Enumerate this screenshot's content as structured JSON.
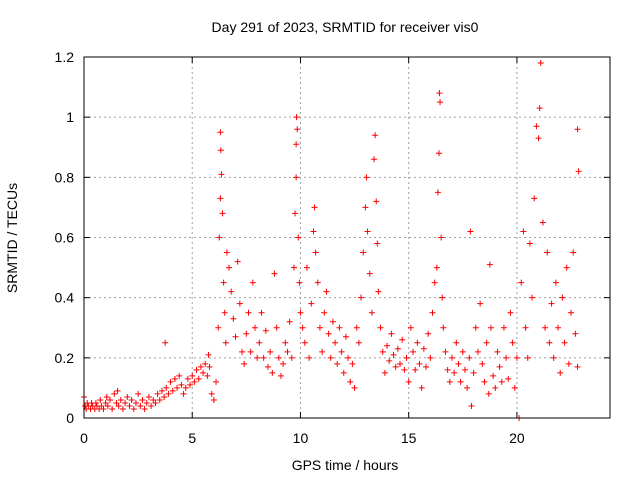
{
  "chart_data": {
    "type": "scatter",
    "title": "Day 291 of 2023, SRMTID for receiver vis0",
    "xlabel": "GPS time / hours",
    "ylabel": "SRMTID / TECUs",
    "xlim": [
      0,
      24.3
    ],
    "ylim": [
      0,
      1.2
    ],
    "x_ticks": [
      0,
      5,
      10,
      15,
      20
    ],
    "x_tick_labels": [
      "0",
      "5",
      "10",
      "15",
      "20"
    ],
    "y_ticks": [
      0,
      0.2,
      0.4,
      0.6,
      0.8,
      1.0,
      1.2
    ],
    "y_tick_labels": [
      "0",
      "0.2",
      "0.4",
      "0.6",
      "0.8",
      "1",
      "1.2"
    ],
    "grid": true,
    "marker": "plus",
    "color": "#ff0000",
    "series": [
      {
        "name": "vis0",
        "points": [
          [
            0.0,
            0.07
          ],
          [
            0.05,
            0.04
          ],
          [
            0.1,
            0.03
          ],
          [
            0.15,
            0.05
          ],
          [
            0.2,
            0.04
          ],
          [
            0.3,
            0.03
          ],
          [
            0.35,
            0.05
          ],
          [
            0.4,
            0.04
          ],
          [
            0.5,
            0.03
          ],
          [
            0.55,
            0.05
          ],
          [
            0.6,
            0.04
          ],
          [
            0.7,
            0.03
          ],
          [
            0.75,
            0.06
          ],
          [
            0.8,
            0.04
          ],
          [
            0.9,
            0.03
          ],
          [
            1.0,
            0.05
          ],
          [
            1.05,
            0.07
          ],
          [
            1.1,
            0.04
          ],
          [
            1.2,
            0.06
          ],
          [
            1.3,
            0.03
          ],
          [
            1.4,
            0.08
          ],
          [
            1.5,
            0.05
          ],
          [
            1.55,
            0.09
          ],
          [
            1.6,
            0.04
          ],
          [
            1.7,
            0.06
          ],
          [
            1.8,
            0.03
          ],
          [
            1.9,
            0.05
          ],
          [
            2.0,
            0.07
          ],
          [
            2.1,
            0.04
          ],
          [
            2.2,
            0.06
          ],
          [
            2.3,
            0.03
          ],
          [
            2.4,
            0.05
          ],
          [
            2.5,
            0.08
          ],
          [
            2.6,
            0.04
          ],
          [
            2.7,
            0.06
          ],
          [
            2.8,
            0.03
          ],
          [
            2.9,
            0.05
          ],
          [
            3.0,
            0.07
          ],
          [
            3.1,
            0.04
          ],
          [
            3.2,
            0.06
          ],
          [
            3.3,
            0.05
          ],
          [
            3.4,
            0.08
          ],
          [
            3.5,
            0.06
          ],
          [
            3.6,
            0.09
          ],
          [
            3.7,
            0.07
          ],
          [
            3.75,
            0.25
          ],
          [
            3.8,
            0.1
          ],
          [
            3.9,
            0.08
          ],
          [
            4.0,
            0.12
          ],
          [
            4.1,
            0.09
          ],
          [
            4.2,
            0.13
          ],
          [
            4.3,
            0.1
          ],
          [
            4.4,
            0.14
          ],
          [
            4.5,
            0.11
          ],
          [
            4.6,
            0.08
          ],
          [
            4.7,
            0.1
          ],
          [
            4.8,
            0.13
          ],
          [
            4.9,
            0.11
          ],
          [
            5.0,
            0.14
          ],
          [
            5.1,
            0.12
          ],
          [
            5.2,
            0.16
          ],
          [
            5.3,
            0.13
          ],
          [
            5.4,
            0.17
          ],
          [
            5.5,
            0.15
          ],
          [
            5.6,
            0.18
          ],
          [
            5.7,
            0.14
          ],
          [
            5.75,
            0.21
          ],
          [
            5.8,
            0.17
          ],
          [
            5.9,
            0.08
          ],
          [
            6.0,
            0.06
          ],
          [
            6.1,
            0.12
          ],
          [
            6.2,
            0.3
          ],
          [
            6.25,
            0.6
          ],
          [
            6.3,
            0.73
          ],
          [
            6.3,
            0.95
          ],
          [
            6.32,
            0.89
          ],
          [
            6.35,
            0.81
          ],
          [
            6.4,
            0.68
          ],
          [
            6.45,
            0.45
          ],
          [
            6.5,
            0.35
          ],
          [
            6.55,
            0.25
          ],
          [
            6.6,
            0.55
          ],
          [
            6.7,
            0.5
          ],
          [
            6.8,
            0.42
          ],
          [
            6.9,
            0.33
          ],
          [
            7.0,
            0.27
          ],
          [
            7.1,
            0.52
          ],
          [
            7.2,
            0.38
          ],
          [
            7.3,
            0.22
          ],
          [
            7.4,
            0.18
          ],
          [
            7.5,
            0.28
          ],
          [
            7.6,
            0.35
          ],
          [
            7.7,
            0.22
          ],
          [
            7.8,
            0.45
          ],
          [
            7.9,
            0.3
          ],
          [
            8.0,
            0.2
          ],
          [
            8.1,
            0.25
          ],
          [
            8.2,
            0.35
          ],
          [
            8.3,
            0.2
          ],
          [
            8.4,
            0.29
          ],
          [
            8.5,
            0.17
          ],
          [
            8.6,
            0.22
          ],
          [
            8.7,
            0.15
          ],
          [
            8.8,
            0.48
          ],
          [
            8.9,
            0.3
          ],
          [
            9.0,
            0.2
          ],
          [
            9.1,
            0.14
          ],
          [
            9.2,
            0.18
          ],
          [
            9.3,
            0.25
          ],
          [
            9.4,
            0.22
          ],
          [
            9.5,
            0.32
          ],
          [
            9.6,
            0.2
          ],
          [
            9.7,
            0.5
          ],
          [
            9.75,
            0.68
          ],
          [
            9.8,
            0.8
          ],
          [
            9.8,
            0.91
          ],
          [
            9.82,
            1.0
          ],
          [
            9.85,
            0.96
          ],
          [
            9.9,
            0.6
          ],
          [
            9.95,
            0.45
          ],
          [
            10.0,
            0.35
          ],
          [
            10.1,
            0.3
          ],
          [
            10.2,
            0.25
          ],
          [
            10.3,
            0.5
          ],
          [
            10.4,
            0.2
          ],
          [
            10.5,
            0.38
          ],
          [
            10.6,
            0.62
          ],
          [
            10.65,
            0.7
          ],
          [
            10.7,
            0.55
          ],
          [
            10.8,
            0.45
          ],
          [
            10.9,
            0.3
          ],
          [
            11.0,
            0.22
          ],
          [
            11.1,
            0.35
          ],
          [
            11.2,
            0.42
          ],
          [
            11.3,
            0.28
          ],
          [
            11.4,
            0.2
          ],
          [
            11.5,
            0.32
          ],
          [
            11.6,
            0.25
          ],
          [
            11.7,
            0.18
          ],
          [
            11.8,
            0.3
          ],
          [
            11.9,
            0.22
          ],
          [
            12.0,
            0.15
          ],
          [
            12.1,
            0.27
          ],
          [
            12.2,
            0.2
          ],
          [
            12.3,
            0.12
          ],
          [
            12.4,
            0.18
          ],
          [
            12.5,
            0.1
          ],
          [
            12.6,
            0.3
          ],
          [
            12.7,
            0.25
          ],
          [
            12.8,
            0.4
          ],
          [
            12.9,
            0.55
          ],
          [
            13.0,
            0.7
          ],
          [
            13.05,
            0.8
          ],
          [
            13.1,
            0.62
          ],
          [
            13.2,
            0.48
          ],
          [
            13.3,
            0.35
          ],
          [
            13.4,
            0.86
          ],
          [
            13.45,
            0.94
          ],
          [
            13.5,
            0.72
          ],
          [
            13.55,
            0.58
          ],
          [
            13.6,
            0.42
          ],
          [
            13.7,
            0.3
          ],
          [
            13.8,
            0.22
          ],
          [
            13.9,
            0.15
          ],
          [
            14.0,
            0.24
          ],
          [
            14.1,
            0.19
          ],
          [
            14.2,
            0.28
          ],
          [
            14.3,
            0.21
          ],
          [
            14.4,
            0.17
          ],
          [
            14.5,
            0.23
          ],
          [
            14.6,
            0.18
          ],
          [
            14.7,
            0.26
          ],
          [
            14.8,
            0.16
          ],
          [
            14.9,
            0.2
          ],
          [
            15.0,
            0.12
          ],
          [
            15.1,
            0.3
          ],
          [
            15.2,
            0.22
          ],
          [
            15.3,
            0.16
          ],
          [
            15.4,
            0.25
          ],
          [
            15.5,
            0.18
          ],
          [
            15.6,
            0.1
          ],
          [
            15.7,
            0.23
          ],
          [
            15.8,
            0.17
          ],
          [
            15.9,
            0.28
          ],
          [
            16.0,
            0.2
          ],
          [
            16.1,
            0.35
          ],
          [
            16.2,
            0.45
          ],
          [
            16.3,
            0.5
          ],
          [
            16.35,
            0.75
          ],
          [
            16.4,
            0.88
          ],
          [
            16.42,
            1.08
          ],
          [
            16.45,
            1.05
          ],
          [
            16.5,
            0.6
          ],
          [
            16.55,
            0.4
          ],
          [
            16.6,
            0.3
          ],
          [
            16.7,
            0.22
          ],
          [
            16.8,
            0.16
          ],
          [
            16.9,
            0.12
          ],
          [
            17.0,
            0.2
          ],
          [
            17.1,
            0.15
          ],
          [
            17.2,
            0.25
          ],
          [
            17.3,
            0.18
          ],
          [
            17.4,
            0.12
          ],
          [
            17.5,
            0.22
          ],
          [
            17.6,
            0.16
          ],
          [
            17.7,
            0.1
          ],
          [
            17.8,
            0.2
          ],
          [
            17.85,
            0.62
          ],
          [
            17.9,
            0.04
          ],
          [
            18.0,
            0.15
          ],
          [
            18.1,
            0.3
          ],
          [
            18.2,
            0.22
          ],
          [
            18.3,
            0.38
          ],
          [
            18.4,
            0.18
          ],
          [
            18.5,
            0.12
          ],
          [
            18.6,
            0.25
          ],
          [
            18.7,
            0.08
          ],
          [
            18.75,
            0.51
          ],
          [
            18.8,
            0.3
          ],
          [
            18.9,
            0.14
          ],
          [
            19.0,
            0.1
          ],
          [
            19.1,
            0.22
          ],
          [
            19.2,
            0.17
          ],
          [
            19.3,
            0.12
          ],
          [
            19.4,
            0.3
          ],
          [
            19.5,
            0.2
          ],
          [
            19.6,
            0.13
          ],
          [
            19.7,
            0.35
          ],
          [
            19.8,
            0.25
          ],
          [
            19.9,
            0.1
          ],
          [
            20.0,
            0.2
          ],
          [
            20.1,
            0.0
          ],
          [
            20.2,
            0.45
          ],
          [
            20.3,
            0.62
          ],
          [
            20.4,
            0.3
          ],
          [
            20.5,
            0.2
          ],
          [
            20.6,
            0.58
          ],
          [
            20.7,
            0.4
          ],
          [
            20.8,
            0.73
          ],
          [
            20.9,
            0.97
          ],
          [
            21.0,
            0.93
          ],
          [
            21.05,
            1.03
          ],
          [
            21.1,
            1.18
          ],
          [
            21.2,
            0.65
          ],
          [
            21.3,
            0.3
          ],
          [
            21.4,
            0.55
          ],
          [
            21.5,
            0.25
          ],
          [
            21.6,
            0.38
          ],
          [
            21.7,
            0.2
          ],
          [
            21.8,
            0.45
          ],
          [
            21.9,
            0.3
          ],
          [
            22.0,
            0.15
          ],
          [
            22.1,
            0.4
          ],
          [
            22.2,
            0.25
          ],
          [
            22.3,
            0.5
          ],
          [
            22.4,
            0.18
          ],
          [
            22.5,
            0.35
          ],
          [
            22.6,
            0.55
          ],
          [
            22.7,
            0.28
          ],
          [
            22.8,
            0.96
          ],
          [
            22.85,
            0.82
          ],
          [
            22.8,
            0.17
          ]
        ]
      }
    ]
  }
}
